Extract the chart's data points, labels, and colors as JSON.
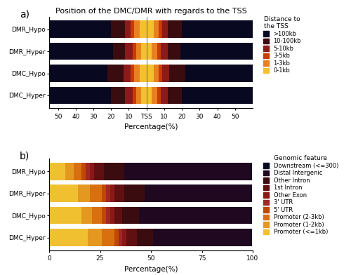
{
  "title_a": "Position of the DMC/DMR with regards to the TSS",
  "categories_a": [
    "DMC_Hyper",
    "DMC_Hypo",
    "DMR_Hyper",
    "DMR_Hypo"
  ],
  "legend_title_a": "Distance to\nthe TSS",
  "legend_labels_a": [
    ">100kb",
    "10-100kb",
    "5-10kb",
    "3-5kb",
    "1-3kb",
    "0-1kb"
  ],
  "colors_a": [
    "#080820",
    "#3a0c10",
    "#8b1a1a",
    "#c83c00",
    "#e88020",
    "#f5c030"
  ],
  "segment_pcts_a": {
    "DMR_Hypo": [
      42,
      8,
      3,
      2,
      3,
      4
    ],
    "DMR_Hyper": [
      43,
      7,
      4,
      2,
      3,
      3
    ],
    "DMC_Hypo": [
      40,
      9,
      4,
      2,
      3,
      4
    ],
    "DMC_Hyper": [
      40,
      8,
      4,
      2,
      3,
      3
    ]
  },
  "xlabel_a": "Percentage(%)",
  "xlim_a": [
    -55,
    60
  ],
  "xticks_a": [
    -50,
    -40,
    -30,
    -20,
    -10,
    0,
    10,
    20,
    30,
    40,
    50
  ],
  "xticklabels_a": [
    "50",
    "40",
    "30",
    "20",
    "10",
    "TSS",
    "10",
    "20",
    "30",
    "40",
    "50"
  ],
  "categories_b": [
    "DMC_Hyper",
    "DMC_Hypo",
    "DMR_Hyper",
    "DMR_Hypo"
  ],
  "legend_title_b": "Genomic feature",
  "legend_labels_b": [
    "Downstream (<=300)",
    "Distal Intergenic",
    "Other Intron",
    "1st Intron",
    "Other Exon",
    "3' UTR",
    "5' UTR",
    "Promoter (2-3kb)",
    "Promoter (1-2kb)",
    "Promoter (<=1kb)"
  ],
  "colors_b": [
    "#080820",
    "#200820",
    "#3a0c10",
    "#601010",
    "#8b1818",
    "#a02828",
    "#c04800",
    "#d87010",
    "#e49820",
    "#f0c030"
  ],
  "segment_pcts_b": {
    "DMR_Hypo": [
      0.5,
      62,
      10,
      5,
      2,
      2,
      2,
      4,
      4,
      8
    ],
    "DMR_Hyper": [
      0.5,
      52,
      10,
      5,
      2,
      2,
      2,
      6,
      6,
      14
    ],
    "DMC_Hypo": [
      0.5,
      55,
      8,
      4,
      2,
      2,
      2,
      5,
      5,
      16
    ],
    "DMC_Hyper": [
      0.5,
      48,
      8,
      5,
      2,
      2,
      2,
      6,
      7,
      19
    ]
  },
  "xlabel_b": "Percentage(%)",
  "xticks_b": [
    0,
    25,
    50,
    75,
    100
  ]
}
